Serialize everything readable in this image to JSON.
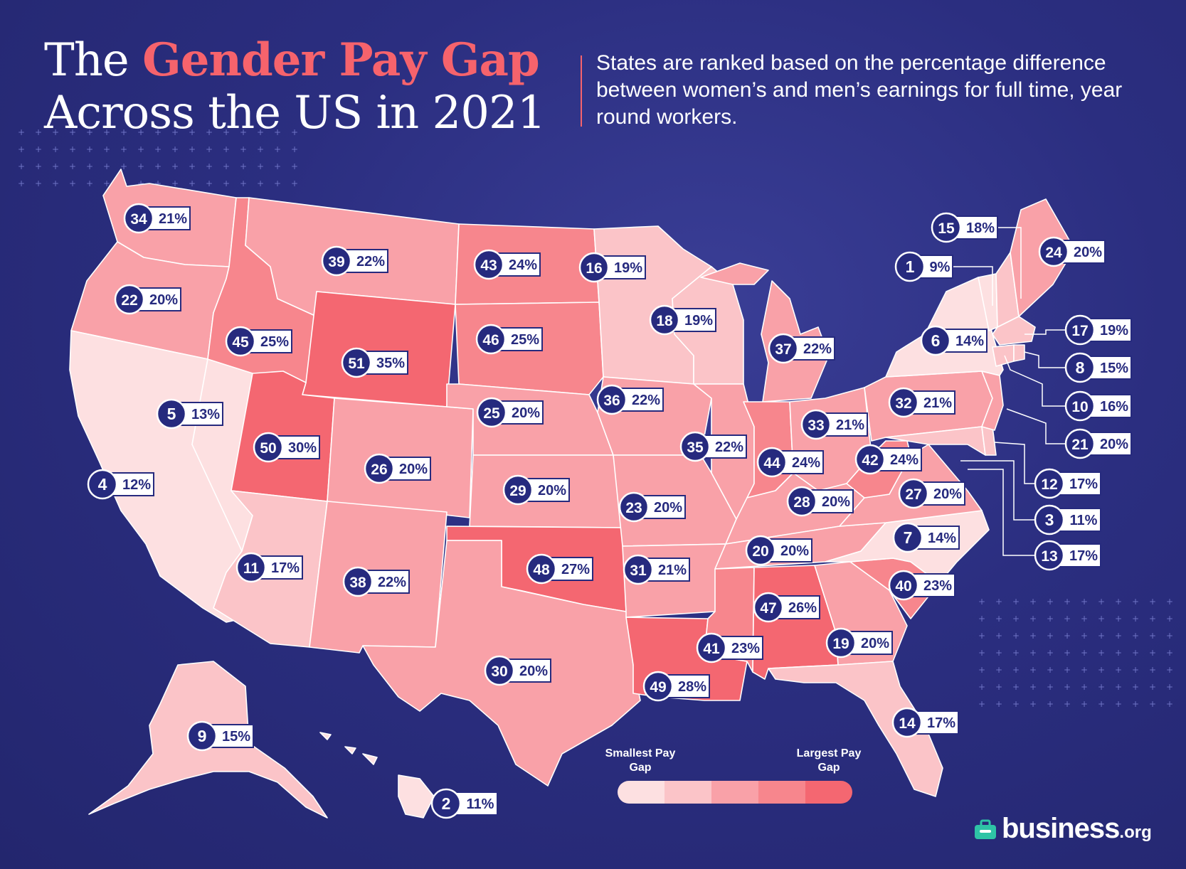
{
  "title": {
    "line1_plain": "The ",
    "line1_accent": "Gender Pay Gap",
    "line2": "Across the US in 2021"
  },
  "subtitle": "States are ranked based on the percentage difference between women’s and men’s earnings for full time, year round workers.",
  "legend": {
    "small": "Smallest Pay Gap",
    "large": "Largest Pay Gap"
  },
  "brand": {
    "word": "business",
    "tld": ".org"
  },
  "colors": {
    "scale": [
      "#fde0e1",
      "#fbc4c8",
      "#f9a1a8",
      "#f7868d",
      "#f46771"
    ],
    "navy": "#262a7e",
    "accent": "#f6636c"
  },
  "map_data": [
    {
      "state": "WA",
      "rank": 34,
      "gap": "21%"
    },
    {
      "state": "OR",
      "rank": 22,
      "gap": "20%"
    },
    {
      "state": "CA",
      "rank": 4,
      "gap": "12%"
    },
    {
      "state": "NV",
      "rank": 5,
      "gap": "13%"
    },
    {
      "state": "ID",
      "rank": 45,
      "gap": "25%"
    },
    {
      "state": "MT",
      "rank": 39,
      "gap": "22%"
    },
    {
      "state": "WY",
      "rank": 51,
      "gap": "35%"
    },
    {
      "state": "UT",
      "rank": 50,
      "gap": "30%"
    },
    {
      "state": "AZ",
      "rank": 11,
      "gap": "17%"
    },
    {
      "state": "CO",
      "rank": 26,
      "gap": "20%"
    },
    {
      "state": "NM",
      "rank": 38,
      "gap": "22%"
    },
    {
      "state": "ND",
      "rank": 43,
      "gap": "24%"
    },
    {
      "state": "SD",
      "rank": 46,
      "gap": "25%"
    },
    {
      "state": "NE",
      "rank": 25,
      "gap": "20%"
    },
    {
      "state": "KS",
      "rank": 29,
      "gap": "20%"
    },
    {
      "state": "OK",
      "rank": 48,
      "gap": "27%"
    },
    {
      "state": "TX",
      "rank": 30,
      "gap": "20%"
    },
    {
      "state": "MN",
      "rank": 16,
      "gap": "19%"
    },
    {
      "state": "IA",
      "rank": 36,
      "gap": "22%"
    },
    {
      "state": "MO",
      "rank": 23,
      "gap": "20%"
    },
    {
      "state": "AR",
      "rank": 31,
      "gap": "21%"
    },
    {
      "state": "LA",
      "rank": 49,
      "gap": "28%"
    },
    {
      "state": "WI",
      "rank": 18,
      "gap": "19%"
    },
    {
      "state": "IL",
      "rank": 35,
      "gap": "22%"
    },
    {
      "state": "MI",
      "rank": 37,
      "gap": "22%"
    },
    {
      "state": "IN",
      "rank": 44,
      "gap": "24%"
    },
    {
      "state": "OH",
      "rank": 33,
      "gap": "21%"
    },
    {
      "state": "KY",
      "rank": 28,
      "gap": "20%"
    },
    {
      "state": "TN",
      "rank": 20,
      "gap": "20%"
    },
    {
      "state": "MS",
      "rank": 41,
      "gap": "23%"
    },
    {
      "state": "AL",
      "rank": 47,
      "gap": "26%"
    },
    {
      "state": "GA",
      "rank": 19,
      "gap": "20%"
    },
    {
      "state": "FL",
      "rank": 14,
      "gap": "17%"
    },
    {
      "state": "SC",
      "rank": 40,
      "gap": "23%"
    },
    {
      "state": "NC",
      "rank": 7,
      "gap": "14%"
    },
    {
      "state": "VA",
      "rank": 27,
      "gap": "20%"
    },
    {
      "state": "WV",
      "rank": 42,
      "gap": "24%"
    },
    {
      "state": "PA",
      "rank": 32,
      "gap": "21%"
    },
    {
      "state": "NY",
      "rank": 6,
      "gap": "14%"
    },
    {
      "state": "ME",
      "rank": 24,
      "gap": "20%"
    },
    {
      "state": "NH",
      "rank": 15,
      "gap": "18%"
    },
    {
      "state": "VT",
      "rank": 1,
      "gap": "9%"
    },
    {
      "state": "MA",
      "rank": 17,
      "gap": "19%"
    },
    {
      "state": "RI",
      "rank": 8,
      "gap": "15%"
    },
    {
      "state": "CT",
      "rank": 10,
      "gap": "16%"
    },
    {
      "state": "NJ",
      "rank": 21,
      "gap": "20%"
    },
    {
      "state": "DE",
      "rank": 12,
      "gap": "17%"
    },
    {
      "state": "DC",
      "rank": 3,
      "gap": "11%"
    },
    {
      "state": "MD",
      "rank": 13,
      "gap": "17%"
    },
    {
      "state": "AK",
      "rank": 9,
      "gap": "15%"
    },
    {
      "state": "HI",
      "rank": 2,
      "gap": "11%"
    }
  ]
}
